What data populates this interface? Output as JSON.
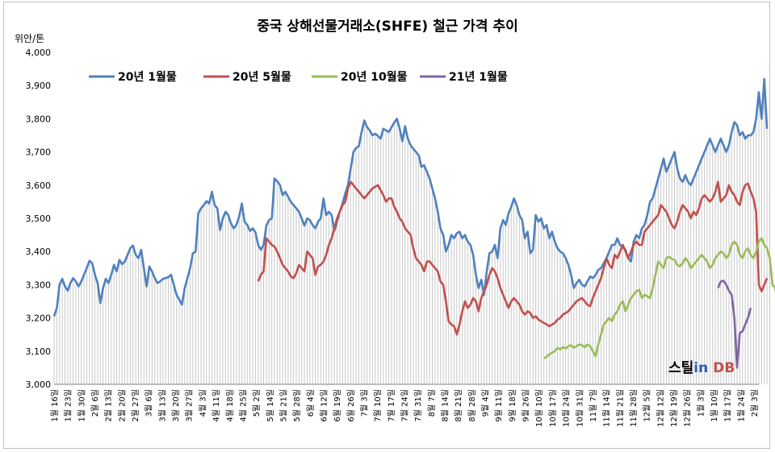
{
  "chart_data": {
    "type": "line",
    "title": "중국 상해선물거래소(SHFE) 철근 가격 추이",
    "ylabel": "위안/톤",
    "ylim": [
      3000,
      4000
    ],
    "yticks": [
      "3,000",
      "3,100",
      "3,200",
      "3,300",
      "3,400",
      "3,500",
      "3,600",
      "3,700",
      "3,800",
      "3,900",
      "4,000"
    ],
    "x_labels": [
      "1월 16일",
      "1월 23일",
      "1월 30일",
      "2월 6일",
      "2월 13일",
      "2월 20일",
      "2월 27일",
      "3월 6일",
      "3월 13일",
      "3월 20일",
      "3월 27일",
      "4월 3일",
      "4월 11일",
      "4월 18일",
      "4월 25일",
      "5월 2일",
      "5월 14일",
      "5월 21일",
      "5월 28일",
      "6월 4일",
      "6월 12일",
      "6월 19일",
      "6월 26일",
      "7월 3일",
      "7월 10일",
      "7월 17일",
      "7월 24일",
      "7월 31일",
      "8월 7일",
      "8월 14일",
      "8월 21일",
      "8월 28일",
      "9월 4일",
      "9월 11일",
      "9월 18일",
      "9월 26일",
      "10월 10일",
      "10월 17일",
      "10월 24일",
      "10월 31일",
      "11월 7일",
      "11월 14일",
      "11월 21일",
      "11월 28일",
      "12월 5일",
      "12월 12일",
      "12월 19일",
      "12월 26일",
      "1월 3일",
      "1월 10일",
      "1월 17일",
      "1월 24일",
      "2월 3일"
    ],
    "n_points": 260,
    "series": [
      {
        "name": "20년 1월물",
        "color": "#4f81bd",
        "start": 0,
        "values": [
          3205,
          3230,
          3300,
          3318,
          3295,
          3282,
          3305,
          3320,
          3310,
          3295,
          3310,
          3330,
          3350,
          3372,
          3365,
          3330,
          3305,
          3245,
          3290,
          3318,
          3305,
          3330,
          3360,
          3340,
          3375,
          3362,
          3370,
          3390,
          3410,
          3418,
          3390,
          3380,
          3405,
          3350,
          3295,
          3355,
          3340,
          3320,
          3305,
          3310,
          3318,
          3320,
          3323,
          3330,
          3300,
          3270,
          3255,
          3240,
          3290,
          3320,
          3350,
          3395,
          3400,
          3515,
          3530,
          3540,
          3552,
          3545,
          3580,
          3540,
          3530,
          3465,
          3500,
          3520,
          3510,
          3485,
          3470,
          3480,
          3505,
          3545,
          3490,
          3480,
          3462,
          3470,
          3458,
          3420,
          3405,
          3420,
          3478,
          3495,
          3500,
          3620,
          3612,
          3600,
          3570,
          3580,
          3565,
          3550,
          3540,
          3530,
          3520,
          3500,
          3478,
          3500,
          3495,
          3480,
          3470,
          3490,
          3500,
          3560,
          3510,
          3520,
          3510,
          3462,
          3490,
          3520,
          3545,
          3575,
          3600,
          3650,
          3700,
          3712,
          3718,
          3760,
          3795,
          3775,
          3765,
          3750,
          3755,
          3748,
          3740,
          3770,
          3765,
          3760,
          3775,
          3788,
          3800,
          3770,
          3732,
          3778,
          3740,
          3720,
          3710,
          3700,
          3690,
          3655,
          3660,
          3640,
          3620,
          3590,
          3560,
          3520,
          3470,
          3450,
          3400,
          3420,
          3450,
          3440,
          3455,
          3460,
          3440,
          3450,
          3430,
          3420,
          3390,
          3330,
          3290,
          3315,
          3270,
          3340,
          3395,
          3400,
          3420,
          3380,
          3470,
          3495,
          3480,
          3515,
          3535,
          3560,
          3540,
          3510,
          3495,
          3440,
          3460,
          3395,
          3405,
          3510,
          3490,
          3500,
          3470,
          3480,
          3440,
          3460,
          3430,
          3410,
          3400,
          3395,
          3380,
          3360,
          3330,
          3290,
          3305,
          3315,
          3300,
          3295,
          3310,
          3325,
          3320,
          3330,
          3345,
          3350,
          3365,
          3380,
          3400,
          3420,
          3420,
          3440,
          3420,
          3415,
          3405,
          3380,
          3370,
          3430,
          3450,
          3440,
          3470,
          3480,
          3510,
          3550,
          3560,
          3590,
          3620,
          3650,
          3680,
          3640,
          3660,
          3680,
          3700,
          3650,
          3620,
          3610,
          3630,
          3610,
          3600,
          3620,
          3640,
          3660,
          3680,
          3700,
          3720,
          3740,
          3720,
          3700,
          3720,
          3740,
          3720,
          3700,
          3720,
          3760,
          3790,
          3780,
          3750,
          3760,
          3740,
          3750,
          3750,
          3760,
          3800,
          3880,
          3800,
          3920,
          3770
        ]
      },
      {
        "name": "20년 5월물",
        "color": "#c0504d",
        "start": 75,
        "values": [
          3310,
          3330,
          3340,
          3440,
          3430,
          3420,
          3415,
          3400,
          3380,
          3360,
          3350,
          3340,
          3325,
          3320,
          3335,
          3360,
          3350,
          3340,
          3400,
          3390,
          3380,
          3330,
          3355,
          3360,
          3370,
          3390,
          3420,
          3440,
          3470,
          3500,
          3520,
          3540,
          3550,
          3590,
          3610,
          3600,
          3590,
          3580,
          3570,
          3560,
          3570,
          3580,
          3590,
          3595,
          3600,
          3585,
          3570,
          3550,
          3560,
          3560,
          3535,
          3520,
          3500,
          3490,
          3470,
          3460,
          3450,
          3410,
          3380,
          3370,
          3360,
          3340,
          3370,
          3370,
          3360,
          3350,
          3340,
          3310,
          3300,
          3250,
          3190,
          3180,
          3175,
          3150,
          3180,
          3220,
          3250,
          3230,
          3240,
          3260,
          3250,
          3220,
          3260,
          3280,
          3300,
          3330,
          3350,
          3340,
          3320,
          3290,
          3270,
          3250,
          3230,
          3250,
          3260,
          3250,
          3240,
          3220,
          3210,
          3220,
          3215,
          3200,
          3205,
          3195,
          3190,
          3185,
          3180,
          3175,
          3180,
          3185,
          3195,
          3200,
          3210,
          3215,
          3220,
          3230,
          3240,
          3250,
          3255,
          3260,
          3250,
          3240,
          3235,
          3260,
          3280,
          3300,
          3320,
          3350,
          3380,
          3360,
          3350,
          3390,
          3380,
          3400,
          3420,
          3400,
          3380,
          3400,
          3420,
          3430,
          3420,
          3420,
          3460,
          3470,
          3480,
          3490,
          3500,
          3510,
          3540,
          3530,
          3520,
          3500,
          3480,
          3470,
          3490,
          3520,
          3540,
          3530,
          3520,
          3500,
          3520,
          3510,
          3530,
          3560,
          3570,
          3560,
          3550,
          3560,
          3580,
          3610,
          3550,
          3560,
          3570,
          3600,
          3580,
          3570,
          3550,
          3540,
          3580,
          3600,
          3605,
          3580,
          3560,
          3520,
          3300,
          3280,
          3300,
          3320
        ]
      },
      {
        "name": "20년 10월물",
        "color": "#9bbb59",
        "start": 180,
        "values": [
          3078,
          3083,
          3090,
          3095,
          3100,
          3110,
          3105,
          3112,
          3108,
          3115,
          3118,
          3110,
          3115,
          3120,
          3118,
          3112,
          3120,
          3115,
          3100,
          3085,
          3120,
          3150,
          3180,
          3190,
          3200,
          3190,
          3210,
          3220,
          3240,
          3250,
          3220,
          3240,
          3260,
          3270,
          3280,
          3285,
          3260,
          3270,
          3265,
          3260,
          3290,
          3330,
          3370,
          3360,
          3350,
          3380,
          3385,
          3378,
          3375,
          3360,
          3355,
          3365,
          3380,
          3370,
          3350,
          3360,
          3370,
          3380,
          3390,
          3380,
          3370,
          3350,
          3360,
          3380,
          3390,
          3400,
          3395,
          3380,
          3390,
          3420,
          3430,
          3420,
          3390,
          3380,
          3400,
          3410,
          3390,
          3380,
          3400,
          3430,
          3440,
          3420,
          3410,
          3380,
          3300,
          3290,
          3240,
          3280,
          3305,
          3340,
          3360
        ]
      },
      {
        "name": "21년 1월물",
        "color": "#8064a2",
        "start": 244,
        "values": [
          3290,
          3310,
          3312,
          3300,
          3282,
          3270,
          3200,
          3050,
          3155,
          3160,
          3180,
          3200,
          3230
        ]
      }
    ]
  },
  "watermark": {
    "prefix": "스틸",
    "mid": "in",
    "suffix": " DB"
  }
}
